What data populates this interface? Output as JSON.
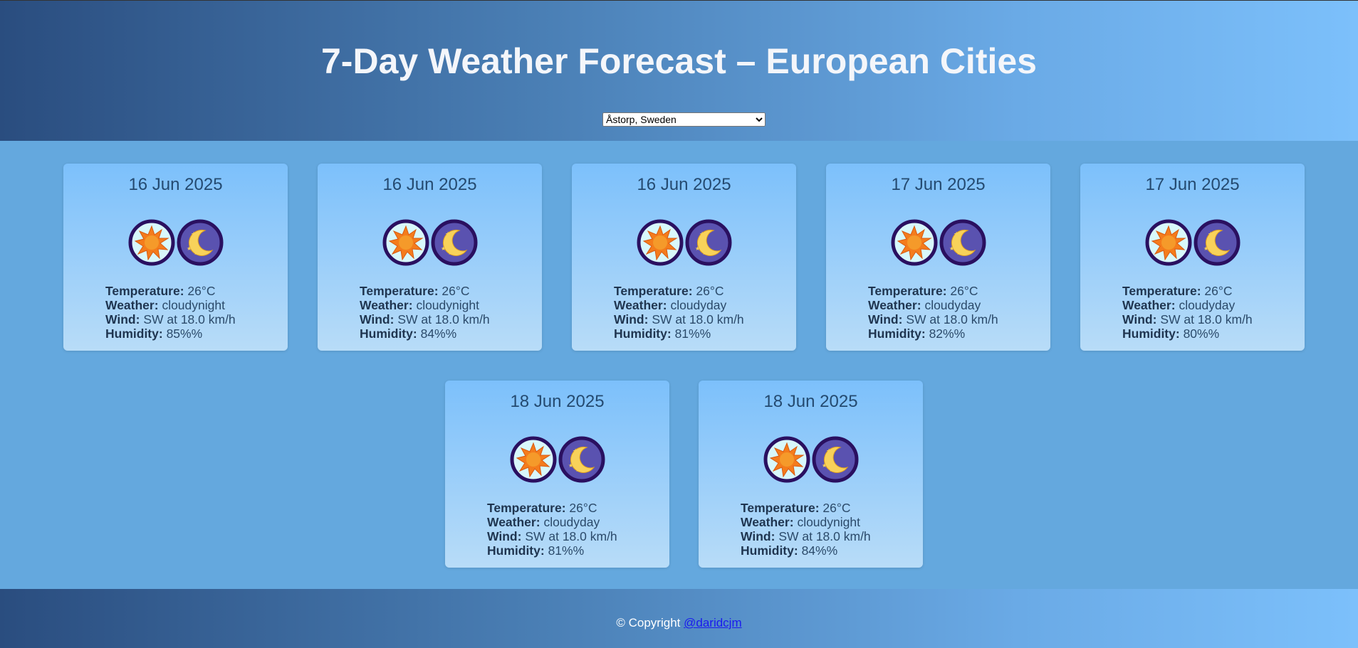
{
  "header": {
    "title": "7-Day Weather Forecast – European Cities",
    "selected_city": "Åstorp, Sweden"
  },
  "field_labels": [
    "Temperature:",
    "Weather:",
    "Wind:",
    "Humidity:"
  ],
  "cards": [
    {
      "date": "16 Jun 2025",
      "fields": [
        "26°C",
        "cloudynight",
        "SW at 18.0 km/h",
        "85%%"
      ]
    },
    {
      "date": "16 Jun 2025",
      "fields": [
        "26°C",
        "cloudynight",
        "SW at 18.0 km/h",
        "84%%"
      ]
    },
    {
      "date": "16 Jun 2025",
      "fields": [
        "26°C",
        "cloudyday",
        "SW at 18.0 km/h",
        "81%%"
      ]
    },
    {
      "date": "17 Jun 2025",
      "fields": [
        "26°C",
        "cloudyday",
        "SW at 18.0 km/h",
        "82%%"
      ]
    },
    {
      "date": "17 Jun 2025",
      "fields": [
        "26°C",
        "cloudyday",
        "SW at 18.0 km/h",
        "80%%"
      ]
    },
    {
      "date": "18 Jun 2025",
      "fields": [
        "26°C",
        "cloudyday",
        "SW at 18.0 km/h",
        "81%%"
      ]
    },
    {
      "date": "18 Jun 2025",
      "fields": [
        "26°C",
        "cloudynight",
        "SW at 18.0 km/h",
        "84%%"
      ]
    }
  ],
  "footer": {
    "copyright": "© Copyright",
    "link": "@daridcjm"
  }
}
